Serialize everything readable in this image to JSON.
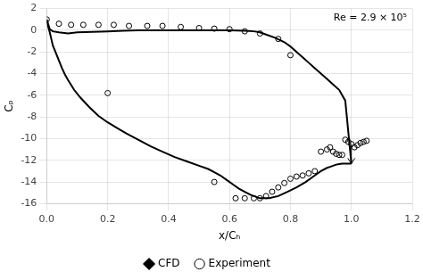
{
  "chart_data": {
    "type": "line",
    "xlabel": "x/Cₕ",
    "ylabel": "Cₚ",
    "annotations": [
      {
        "text": "Re = 2.9 × 10⁵"
      }
    ],
    "xlim": [
      0,
      1.2
    ],
    "ylim": [
      -16,
      2
    ],
    "xticks": [
      {
        "value": 0,
        "label": "0.0"
      },
      0.2,
      0.4,
      0.6,
      0.8,
      {
        "value": 1.0,
        "label": "1.0"
      },
      1.2
    ],
    "yticks": [
      2,
      0,
      -2,
      -4,
      -6,
      -8,
      -10,
      -12,
      -14,
      -16
    ],
    "grid": true,
    "legend": "bottom",
    "series": [
      {
        "name": "CFD",
        "type": "line",
        "color": "#000000",
        "marker": "diamond",
        "line_style": "solid",
        "x": [
          0.0,
          0.005,
          0.01,
          0.015,
          0.02,
          0.03,
          0.04,
          0.05,
          0.06,
          0.07,
          0.09,
          0.11,
          0.14,
          0.17,
          0.2,
          0.23,
          0.26,
          0.3,
          0.34,
          0.38,
          0.42,
          0.46,
          0.5,
          0.53,
          0.55,
          0.57,
          0.59,
          0.61,
          0.63,
          0.65,
          0.67,
          0.7,
          0.73,
          0.76,
          0.79,
          0.82,
          0.85,
          0.88,
          0.9,
          0.92,
          0.93,
          0.94,
          0.95,
          0.96,
          0.97,
          0.98,
          0.99,
          1.0,
          null,
          0.0,
          0.01,
          0.02,
          0.04,
          0.07,
          0.1,
          0.15,
          0.2,
          0.25,
          0.3,
          0.35,
          0.4,
          0.45,
          0.5,
          0.55,
          0.6,
          0.65,
          0.68,
          0.7,
          0.72,
          0.75,
          0.78,
          0.8,
          0.82,
          0.84,
          0.86,
          0.88,
          0.9,
          0.92,
          0.94,
          0.96,
          0.98,
          1.0
        ],
        "values": [
          1.0,
          0.3,
          -0.2,
          -0.8,
          -1.4,
          -2.1,
          -2.8,
          -3.5,
          -4.1,
          -4.6,
          -5.5,
          -6.2,
          -7.1,
          -7.9,
          -8.5,
          -9.0,
          -9.5,
          -10.1,
          -10.7,
          -11.2,
          -11.7,
          -12.1,
          -12.5,
          -12.8,
          -13.1,
          -13.4,
          -13.8,
          -14.2,
          -14.6,
          -14.9,
          -15.2,
          -15.5,
          -15.5,
          -15.3,
          -14.9,
          -14.5,
          -14.0,
          -13.4,
          -13.0,
          -12.7,
          -12.6,
          -12.5,
          -12.4,
          -12.35,
          -12.3,
          -12.3,
          -12.3,
          -12.3,
          null,
          1.0,
          0.1,
          -0.1,
          -0.2,
          -0.3,
          -0.2,
          -0.15,
          -0.1,
          -0.05,
          0.0,
          0.0,
          0.0,
          0.0,
          0.0,
          0.0,
          0.0,
          -0.05,
          -0.1,
          -0.2,
          -0.4,
          -0.7,
          -1.1,
          -1.5,
          -2.0,
          -2.5,
          -3.0,
          -3.5,
          -4.0,
          -4.5,
          -5.0,
          -5.5,
          -6.5,
          -12.3
        ]
      },
      {
        "name": "Experiment",
        "type": "scatter",
        "color": "#000000",
        "marker": "open_circle",
        "x": [
          0.0,
          0.04,
          0.08,
          0.12,
          0.17,
          0.22,
          0.27,
          0.33,
          0.38,
          0.44,
          0.5,
          0.55,
          0.6,
          0.65,
          0.7,
          0.76,
          0.8,
          0.2,
          0.55,
          0.62,
          0.65,
          0.68,
          0.7,
          0.72,
          0.74,
          0.76,
          0.78,
          0.8,
          0.82,
          0.84,
          0.86,
          0.88,
          0.9,
          0.92,
          0.93,
          0.94,
          0.95,
          0.96,
          0.97,
          0.98,
          0.99,
          1.0,
          1.01,
          1.02,
          1.03,
          1.04,
          1.05
        ],
        "values": [
          1.0,
          0.6,
          0.5,
          0.5,
          0.5,
          0.5,
          0.4,
          0.4,
          0.4,
          0.3,
          0.2,
          0.15,
          0.1,
          -0.1,
          -0.3,
          -0.8,
          -2.3,
          -5.8,
          -14.0,
          -15.5,
          -15.5,
          -15.5,
          -15.5,
          -15.3,
          -14.9,
          -14.5,
          -14.1,
          -13.7,
          -13.5,
          -13.4,
          -13.2,
          -13.0,
          -11.2,
          -11.0,
          -10.8,
          -11.2,
          -11.4,
          -11.5,
          -11.5,
          -10.1,
          -10.3,
          -10.5,
          -10.8,
          -10.6,
          -10.4,
          -10.3,
          -10.2
        ]
      }
    ],
    "arrows": [
      {
        "x": 1.0,
        "y_from": -10.5,
        "y_to": -12.3
      }
    ]
  }
}
